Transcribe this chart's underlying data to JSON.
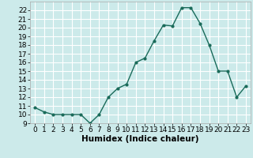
{
  "x": [
    0,
    1,
    2,
    3,
    4,
    5,
    6,
    7,
    8,
    9,
    10,
    11,
    12,
    13,
    14,
    15,
    16,
    17,
    18,
    19,
    20,
    21,
    22,
    23
  ],
  "y": [
    10.8,
    10.3,
    10.0,
    10.0,
    10.0,
    10.0,
    9.0,
    10.0,
    12.0,
    13.0,
    13.5,
    16.0,
    16.5,
    18.5,
    20.3,
    20.2,
    22.3,
    22.3,
    20.5,
    18.0,
    15.0,
    15.0,
    12.0,
    13.3
  ],
  "line_color": "#1a6b5a",
  "marker": "o",
  "marker_size": 2.0,
  "line_width": 1.0,
  "bg_color": "#cceaea",
  "grid_color": "#ffffff",
  "xlabel": "Humidex (Indice chaleur)",
  "xlabel_fontsize": 7.5,
  "xlabel_fontweight": "bold",
  "ylim": [
    9,
    23
  ],
  "xlim": [
    -0.5,
    23.5
  ],
  "yticks": [
    9,
    10,
    11,
    12,
    13,
    14,
    15,
    16,
    17,
    18,
    19,
    20,
    21,
    22
  ],
  "xticks": [
    0,
    1,
    2,
    3,
    4,
    5,
    6,
    7,
    8,
    9,
    10,
    11,
    12,
    13,
    14,
    15,
    16,
    17,
    18,
    19,
    20,
    21,
    22,
    23
  ],
  "tick_fontsize": 6.5
}
